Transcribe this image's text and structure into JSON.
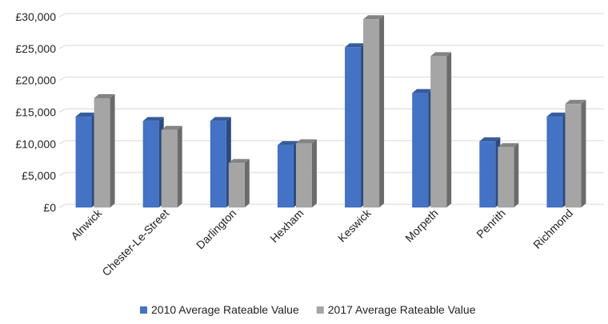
{
  "chart_data": {
    "type": "bar",
    "style": "3d-clustered",
    "categories": [
      "Alnwick",
      "Chester-Le-Street",
      "Darlington",
      "Hexham",
      "Keswick",
      "Morpeth",
      "Penrith",
      "Richmond"
    ],
    "series": [
      {
        "name": "2010 Average Rateable Value",
        "color": "#4472c4",
        "values": [
          14300,
          13600,
          13600,
          9800,
          25200,
          18000,
          10400,
          14300
        ]
      },
      {
        "name": "2017 Average Rateable Value",
        "color": "#a5a5a5",
        "values": [
          17200,
          12200,
          7000,
          10100,
          29600,
          23800,
          9500,
          16300
        ]
      }
    ],
    "ylim": [
      0,
      30000
    ],
    "yticks": [
      0,
      5000,
      10000,
      15000,
      20000,
      25000,
      30000
    ],
    "ytick_labels": [
      "£0",
      "£5,000",
      "£10,000",
      "£15,000",
      "£20,000",
      "£25,000",
      "£30,000"
    ],
    "grid": true,
    "legend_position": "bottom"
  }
}
